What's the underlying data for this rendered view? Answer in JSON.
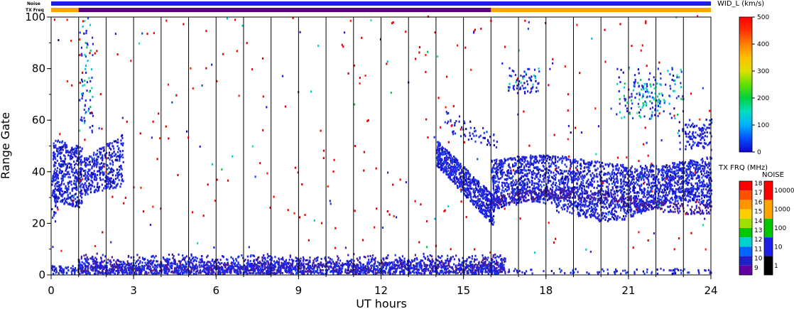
{
  "chart_data": {
    "type": "heatmap",
    "xlabel": "UT hours",
    "ylabel": "Range Gate",
    "xlim": [
      0,
      24
    ],
    "ylim": [
      0,
      100
    ],
    "x_ticks": [
      "0",
      "3",
      "6",
      "9",
      "12",
      "15",
      "18",
      "21",
      "24"
    ],
    "y_ticks": [
      "0",
      "20",
      "40",
      "60",
      "80",
      "100"
    ],
    "hour_separators": [
      1,
      2,
      3,
      4,
      5,
      6,
      7,
      8,
      9,
      10,
      11,
      12,
      13,
      14,
      15,
      16,
      17,
      18,
      19,
      20,
      21,
      22,
      23
    ],
    "top_bars": {
      "noise_label": "Noise",
      "txfreq_label": "TX Freq",
      "noise_color": "#1e1ee6",
      "txfreq_segments": [
        {
          "start": 0,
          "end": 1,
          "color": "#ffa500"
        },
        {
          "start": 1,
          "end": 16,
          "color": "#5a0080"
        },
        {
          "start": 16,
          "end": 24,
          "color": "#ffa500"
        }
      ]
    },
    "width_colorbar": {
      "title": "WID_L (km/s)",
      "ticks": [
        "500",
        "400",
        "300",
        "200",
        "100",
        "0"
      ],
      "range": [
        0,
        500
      ]
    },
    "txfreq_colorbar": {
      "title": "TX FRQ (MHz)",
      "labels": [
        "18",
        "17",
        "16",
        "15",
        "14",
        "13",
        "12",
        "11",
        "10",
        "9"
      ],
      "colors": [
        "#ff0000",
        "#ff5000",
        "#ff9600",
        "#ffd000",
        "#a0e000",
        "#00c800",
        "#00d0d0",
        "#0064ff",
        "#2020c8",
        "#6400a0"
      ]
    },
    "noise_colorbar": {
      "title": "NOISE",
      "labels": [
        "10000",
        "1000",
        "100",
        "10",
        "1"
      ],
      "colors": [
        "#ff0000",
        "#ffa500",
        "#00c800",
        "#1e1ee6",
        "#000000"
      ]
    },
    "scatter_regions": [
      {
        "name": "near-range band",
        "x_range": [
          0.9,
          16.5
        ],
        "y_range": [
          0,
          8
        ],
        "density": "high",
        "dominant_width": "0-100"
      },
      {
        "name": "early echo cluster",
        "x_range": [
          0,
          2.0
        ],
        "y_range": [
          25,
          55
        ],
        "density": "high",
        "dominant_width": "0-100"
      },
      {
        "name": "early echo cluster 2",
        "x_range": [
          1.0,
          2.6
        ],
        "y_range": [
          30,
          55
        ],
        "density": "medium",
        "dominant_width": "0-100"
      },
      {
        "name": "afternoon descending band",
        "x_range": [
          14.0,
          16.1
        ],
        "y_range": [
          17,
          52
        ],
        "density": "high",
        "dominant_width": "0-100"
      },
      {
        "name": "evening band",
        "x_range": [
          16.0,
          24.0
        ],
        "y_range": [
          20,
          46
        ],
        "density": "high",
        "dominant_width": "0-100"
      },
      {
        "name": "high-range patches",
        "x_range": [
          16.5,
          23.0
        ],
        "y_range": [
          60,
          80
        ],
        "density": "low",
        "dominant_width": "100-200"
      },
      {
        "name": "sparse noise",
        "x_range": [
          0,
          24
        ],
        "y_range": [
          0,
          100
        ],
        "density": "very-low",
        "dominant_width": "400-500"
      }
    ]
  }
}
